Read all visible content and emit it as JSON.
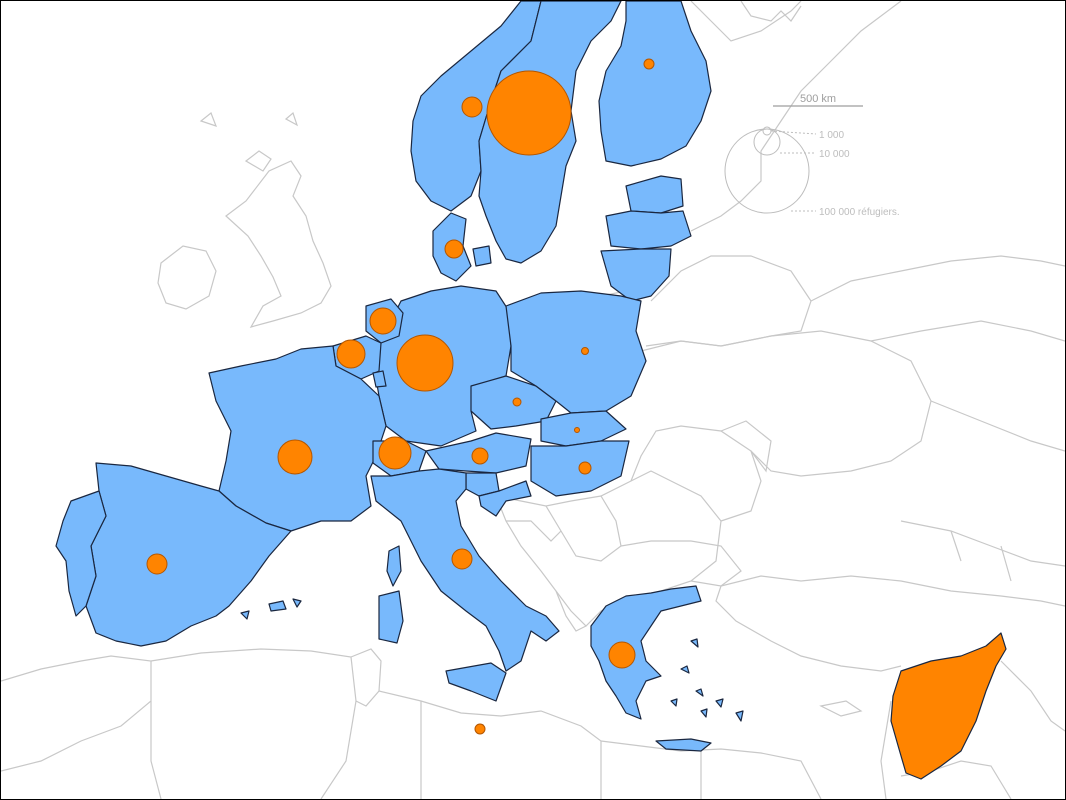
{
  "colors": {
    "eu_fill": "#78b9fc",
    "syria_fill": "#ff8400",
    "circle_fill": "#ff8400",
    "circle_stroke": "#b35600",
    "border_light": "#c8c8c8",
    "border_dark": "#1a2740",
    "legend_grey": "#bdbdbd"
  },
  "scale_bar": {
    "label": "500 km"
  },
  "legend": {
    "entries": [
      {
        "value": 1000,
        "label": "1 000"
      },
      {
        "value": 10000,
        "label": "10 000"
      },
      {
        "value": 100000,
        "label": "100 000 réfugiers."
      }
    ]
  },
  "refugee_circles": [
    {
      "place": "Sweden",
      "size": "largest"
    },
    {
      "place": "Germany",
      "size": "large"
    },
    {
      "place": "Norway",
      "size": "small"
    },
    {
      "place": "Finland",
      "size": "tiny"
    },
    {
      "place": "Denmark",
      "size": "small"
    },
    {
      "place": "Netherlands",
      "size": "small"
    },
    {
      "place": "Belgium",
      "size": "small"
    },
    {
      "place": "France",
      "size": "medium"
    },
    {
      "place": "Switzerland",
      "size": "medium"
    },
    {
      "place": "Austria",
      "size": "small"
    },
    {
      "place": "Czech Republic",
      "size": "tiny"
    },
    {
      "place": "Poland",
      "size": "tiny"
    },
    {
      "place": "Slovakia",
      "size": "tiny"
    },
    {
      "place": "Hungary",
      "size": "tiny"
    },
    {
      "place": "Italy",
      "size": "small"
    },
    {
      "place": "Spain",
      "size": "small"
    },
    {
      "place": "Greece",
      "size": "small"
    },
    {
      "place": "Malta",
      "size": "tiny"
    }
  ]
}
